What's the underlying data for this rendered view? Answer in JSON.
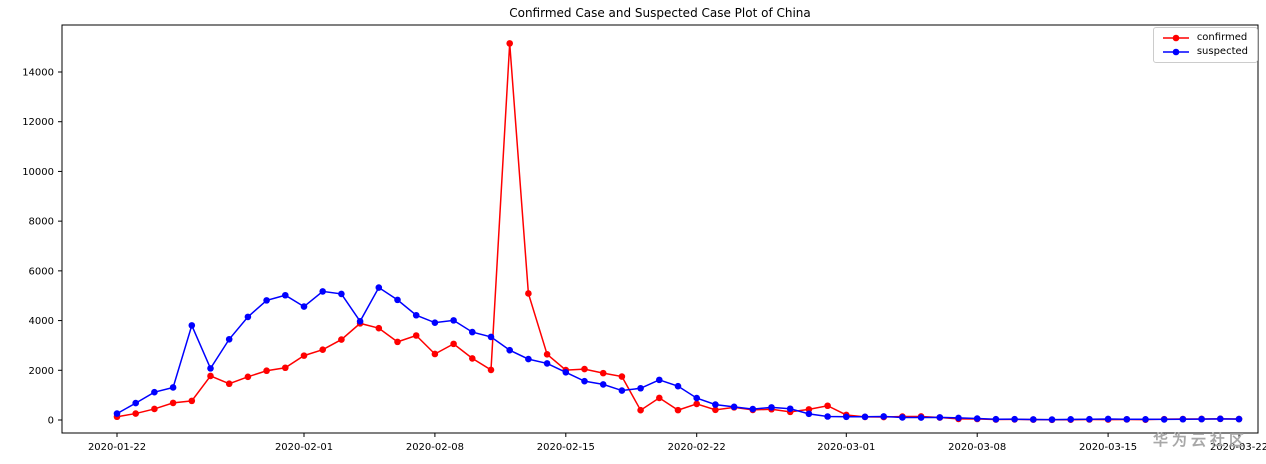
{
  "chart_data": {
    "type": "line",
    "title": "Confirmed Case and Suspected Case Plot of China",
    "xlabel": "",
    "ylabel": "",
    "grid": false,
    "legend_position": "upper right",
    "x": [
      "2020-01-22",
      "2020-01-23",
      "2020-01-24",
      "2020-01-25",
      "2020-01-26",
      "2020-01-27",
      "2020-01-28",
      "2020-01-29",
      "2020-01-30",
      "2020-01-31",
      "2020-02-01",
      "2020-02-02",
      "2020-02-03",
      "2020-02-04",
      "2020-02-05",
      "2020-02-06",
      "2020-02-07",
      "2020-02-08",
      "2020-02-09",
      "2020-02-10",
      "2020-02-11",
      "2020-02-12",
      "2020-02-13",
      "2020-02-14",
      "2020-02-15",
      "2020-02-16",
      "2020-02-17",
      "2020-02-18",
      "2020-02-19",
      "2020-02-20",
      "2020-02-21",
      "2020-02-22",
      "2020-02-23",
      "2020-02-24",
      "2020-02-25",
      "2020-02-26",
      "2020-02-27",
      "2020-02-28",
      "2020-02-29",
      "2020-03-01",
      "2020-03-02",
      "2020-03-03",
      "2020-03-04",
      "2020-03-05",
      "2020-03-06",
      "2020-03-07",
      "2020-03-08",
      "2020-03-09",
      "2020-03-10",
      "2020-03-11",
      "2020-03-12",
      "2020-03-13",
      "2020-03-14",
      "2020-03-15",
      "2020-03-16",
      "2020-03-17",
      "2020-03-18",
      "2020-03-19",
      "2020-03-20",
      "2020-03-21",
      "2020-03-22"
    ],
    "series": [
      {
        "name": "confirmed",
        "color": "#ff0000",
        "values": [
          131,
          259,
          444,
          688,
          769,
          1771,
          1459,
          1737,
          1982,
          2102,
          2590,
          2829,
          3235,
          3887,
          3694,
          3143,
          3399,
          2656,
          3062,
          2478,
          2015,
          15152,
          5090,
          2641,
          2009,
          2048,
          1886,
          1749,
          394,
          889,
          397,
          648,
          409,
          508,
          406,
          433,
          327,
          427,
          573,
          202,
          125,
          119,
          139,
          143,
          99,
          44,
          40,
          19,
          24,
          15,
          8,
          11,
          20,
          16,
          21,
          13,
          34,
          39,
          41,
          46,
          39
        ]
      },
      {
        "name": "suspected",
        "color": "#0000ff",
        "values": [
          257,
          680,
          1118,
          1309,
          3806,
          2077,
          3248,
          4148,
          4812,
          5019,
          4562,
          5173,
          5072,
          3971,
          5328,
          4833,
          4214,
          3916,
          4008,
          3536,
          3342,
          2807,
          2450,
          2277,
          1918,
          1563,
          1432,
          1185,
          1277,
          1614,
          1361,
          882,
          620,
          530,
          439,
          508,
          452,
          248,
          141,
          129,
          129,
          143,
          102,
          99,
          106,
          84,
          59,
          31,
          33,
          22,
          17,
          27,
          32,
          41,
          30,
          28,
          23,
          31,
          36,
          47,
          36
        ]
      }
    ],
    "x_ticks": [
      {
        "index": 0,
        "label": "2020-01-22"
      },
      {
        "index": 10,
        "label": "2020-02-01"
      },
      {
        "index": 17,
        "label": "2020-02-08"
      },
      {
        "index": 24,
        "label": "2020-02-15"
      },
      {
        "index": 31,
        "label": "2020-02-22"
      },
      {
        "index": 39,
        "label": "2020-03-01"
      },
      {
        "index": 46,
        "label": "2020-03-08"
      },
      {
        "index": 53,
        "label": "2020-03-15"
      },
      {
        "index": 60,
        "label": "2020-03-22"
      }
    ],
    "y_ticks": [
      0,
      2000,
      4000,
      6000,
      8000,
      10000,
      12000,
      14000
    ],
    "ylim": [
      -520,
      15900
    ]
  },
  "watermark": "华为云社区"
}
